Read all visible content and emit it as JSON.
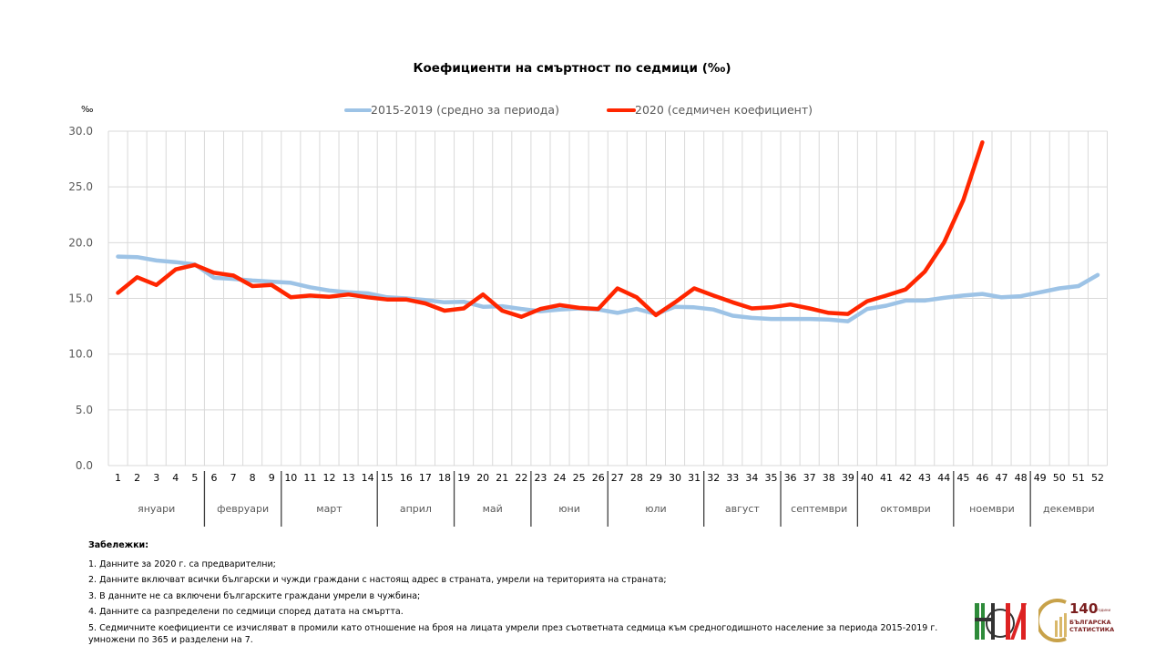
{
  "chart_data": {
    "type": "line",
    "title": "Коефициенти на смъртност по седмици (‰)",
    "ylabel": "‰",
    "xlabel": "",
    "ylim": [
      0,
      30
    ],
    "yticks": [
      "0.0",
      "5.0",
      "10.0",
      "15.0",
      "20.0",
      "25.0",
      "30.0"
    ],
    "ytick_values": [
      0,
      5,
      10,
      15,
      20,
      25,
      30
    ],
    "grid": true,
    "legend_position": "top",
    "x": [
      1,
      2,
      3,
      4,
      5,
      6,
      7,
      8,
      9,
      10,
      11,
      12,
      13,
      14,
      15,
      16,
      17,
      18,
      19,
      20,
      21,
      22,
      23,
      24,
      25,
      26,
      27,
      28,
      29,
      30,
      31,
      32,
      33,
      34,
      35,
      36,
      37,
      38,
      39,
      40,
      41,
      42,
      43,
      44,
      45,
      46,
      47,
      48,
      49,
      50,
      51,
      52
    ],
    "months": [
      {
        "label": "януари",
        "start": 1,
        "end": 5
      },
      {
        "label": "февруари",
        "start": 6,
        "end": 9
      },
      {
        "label": "март",
        "start": 10,
        "end": 14
      },
      {
        "label": "април",
        "start": 15,
        "end": 18
      },
      {
        "label": "май",
        "start": 19,
        "end": 22
      },
      {
        "label": "юни",
        "start": 23,
        "end": 26
      },
      {
        "label": "юли",
        "start": 27,
        "end": 31
      },
      {
        "label": "август",
        "start": 32,
        "end": 35
      },
      {
        "label": "септември",
        "start": 36,
        "end": 39
      },
      {
        "label": "октомври",
        "start": 40,
        "end": 44
      },
      {
        "label": "ноември",
        "start": 45,
        "end": 48
      },
      {
        "label": "декември",
        "start": 49,
        "end": 52
      }
    ],
    "series": [
      {
        "name": "2015-2019 (средно за периода)",
        "color": "#9DC3E6",
        "values": [
          18.75,
          18.7,
          18.4,
          18.25,
          18.05,
          16.85,
          16.75,
          16.6,
          16.5,
          16.4,
          16.0,
          15.7,
          15.55,
          15.45,
          15.1,
          15.0,
          14.85,
          14.65,
          14.7,
          14.25,
          14.3,
          14.05,
          13.85,
          14.0,
          14.1,
          14.0,
          13.7,
          14.05,
          13.6,
          14.25,
          14.2,
          14.0,
          13.45,
          13.25,
          13.15,
          13.15,
          13.15,
          13.1,
          12.95,
          14.05,
          14.35,
          14.8,
          14.8,
          15.05,
          15.25,
          15.4,
          15.1,
          15.2,
          15.55,
          15.9,
          16.1,
          17.1
        ]
      },
      {
        "name": "2020 (седмичен коефициент)",
        "color": "#FF2600",
        "values": [
          15.5,
          16.9,
          16.2,
          17.6,
          18.0,
          17.3,
          17.05,
          16.1,
          16.2,
          15.1,
          15.25,
          15.15,
          15.35,
          15.1,
          14.9,
          14.9,
          14.55,
          13.9,
          14.1,
          15.35,
          13.9,
          13.35,
          14.05,
          14.4,
          14.15,
          14.05,
          15.9,
          15.1,
          13.5,
          14.65,
          15.9,
          15.25,
          14.65,
          14.1,
          14.2,
          14.45,
          14.1,
          13.7,
          13.6,
          14.75,
          15.25,
          15.8,
          17.4,
          20.0,
          23.8,
          29.0
        ]
      }
    ]
  },
  "notes": {
    "heading": "Забележки:",
    "items": [
      "1. Данните за 2020 г. са предварителни;",
      "2. Данните включват всички български и чужди граждани с настоящ адрес в страната, умрели на територията на страната;",
      "3. В данните не са включени българските граждани умрели в чужбина;",
      "4. Данните са разпределени по седмици според  датата на смъртта.",
      "5. Седмичните коефициенти се изчисляват в промили като отношение на броя на лицата умрели през съответната седмица към средногодишното население за периода 2015-2019 г. умножени по 365 и разделени на 7."
    ]
  },
  "logos": {
    "nsi": "НСИ",
    "anniversary_number": "140",
    "anniversary_sub": "години",
    "anniversary_line1": "БЪЛГАРСКА",
    "anniversary_line2": "СТАТИСТИКА"
  }
}
